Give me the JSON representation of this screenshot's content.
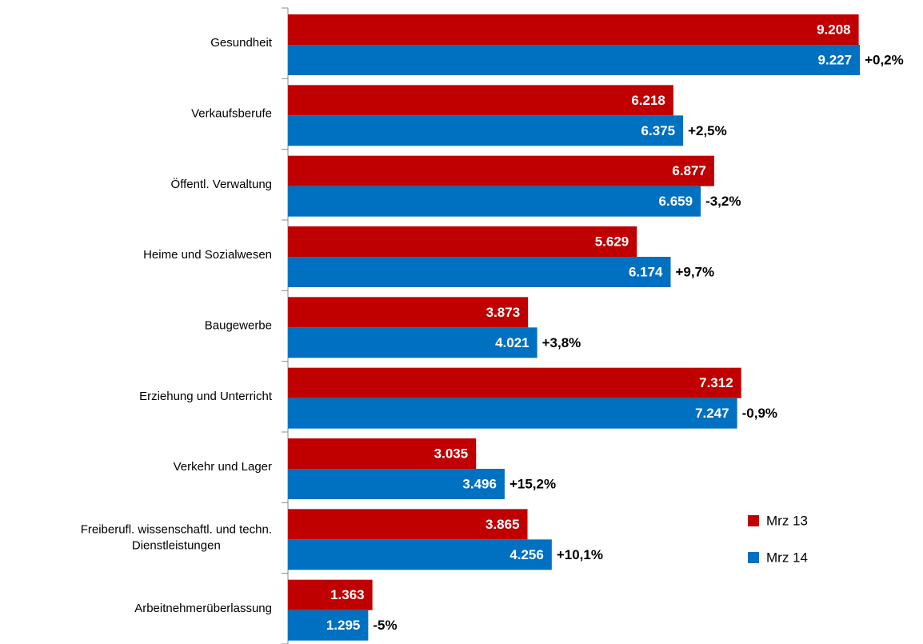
{
  "chart_data": {
    "type": "bar",
    "orientation": "horizontal",
    "categories": [
      "Gesundheit",
      "Verkaufsberufe",
      "Öffentl. Verwaltung",
      "Heime und Sozialwesen",
      "Baugewerbe",
      "Erziehung und Unterricht",
      "Verkehr und Lager",
      "Freiberufl. wissenschaftl. und techn.\nDienstleistungen",
      "Arbeitnehmerüberlassung"
    ],
    "series": [
      {
        "name": "Mrz 13",
        "color": "#c00000",
        "values": [
          9208,
          6218,
          6877,
          5629,
          3873,
          7312,
          3035,
          3865,
          1363
        ],
        "value_labels": [
          "9.208",
          "6.218",
          "6.877",
          "5.629",
          "3.873",
          "7.312",
          "3.035",
          "3.865",
          "1.363"
        ]
      },
      {
        "name": "Mrz 14",
        "color": "#0070c0",
        "values": [
          9227,
          6375,
          6659,
          6174,
          4021,
          7247,
          3496,
          4256,
          1295
        ],
        "value_labels": [
          "9.227",
          "6.375",
          "6.659",
          "6.174",
          "4.021",
          "7.247",
          "3.496",
          "4.256",
          "1.295"
        ]
      }
    ],
    "annotations": [
      "+0,2%",
      "+2,5%",
      "-3,2%",
      "+9,7%",
      "+3,8%",
      "-0,9%",
      "+15,2%",
      "+10,1%",
      "-5%"
    ],
    "xlim": [
      0,
      10000
    ],
    "legend": "lower right"
  }
}
